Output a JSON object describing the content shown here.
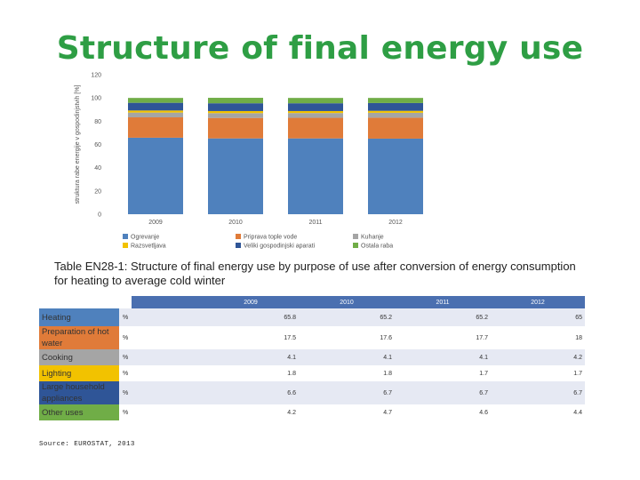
{
  "title": "Structure of final energy use",
  "chart_data": {
    "type": "bar",
    "stacked": true,
    "categories": [
      "2009",
      "2010",
      "2011",
      "2012"
    ],
    "ylabel": "struktura rabe energije v gospodinjstvih [%]",
    "ylim": [
      0,
      120
    ],
    "yticks": [
      0,
      20,
      40,
      60,
      80,
      100,
      120
    ],
    "legend_position": "bottom",
    "series": [
      {
        "name": "Ogrevanje",
        "color": "#4f81bd",
        "values": [
          65.8,
          65.2,
          65.2,
          65.0
        ]
      },
      {
        "name": "Priprava tople vode",
        "color": "#e07b39",
        "values": [
          17.5,
          17.6,
          17.7,
          18.0
        ]
      },
      {
        "name": "Kuhanje",
        "color": "#a5a5a5",
        "values": [
          4.1,
          4.1,
          4.1,
          4.2
        ]
      },
      {
        "name": "Razsvetljava",
        "color": "#f2c200",
        "values": [
          1.8,
          1.8,
          1.7,
          1.7
        ]
      },
      {
        "name": "Veliki gospodinjski aparati",
        "color": "#2f5597",
        "values": [
          6.6,
          6.7,
          6.7,
          6.7
        ]
      },
      {
        "name": "Ostala raba",
        "color": "#70ad47",
        "values": [
          4.2,
          4.7,
          4.6,
          4.4
        ]
      }
    ]
  },
  "caption": "Table EN28-1: Structure of final energy use by purpose of use after conversion of energy consumption for heating to average cold winter",
  "table": {
    "years": [
      "2009",
      "2010",
      "2011",
      "2012"
    ],
    "rows": [
      {
        "label": "Heating",
        "color": "#4f81bd",
        "unit": "%",
        "values": [
          "65.8",
          "65.2",
          "65.2",
          "65"
        ]
      },
      {
        "label": "Preparation of hot water",
        "color": "#e07b39",
        "unit": "%",
        "values": [
          "17.5",
          "17.6",
          "17.7",
          "18"
        ]
      },
      {
        "label": "Cooking",
        "color": "#a5a5a5",
        "unit": "%",
        "values": [
          "4.1",
          "4.1",
          "4.1",
          "4.2"
        ]
      },
      {
        "label": "Lighting",
        "color": "#f2c200",
        "unit": "%",
        "values": [
          "1.8",
          "1.8",
          "1.7",
          "1.7"
        ]
      },
      {
        "label": "Large household appliances",
        "color": "#2f5597",
        "unit": "%",
        "values": [
          "6.6",
          "6.7",
          "6.7",
          "6.7"
        ]
      },
      {
        "label": "Other uses",
        "color": "#70ad47",
        "unit": "%",
        "values": [
          "4.2",
          "4.7",
          "4.6",
          "4.4"
        ]
      }
    ]
  },
  "source": "Source: EUROSTAT, 2013"
}
